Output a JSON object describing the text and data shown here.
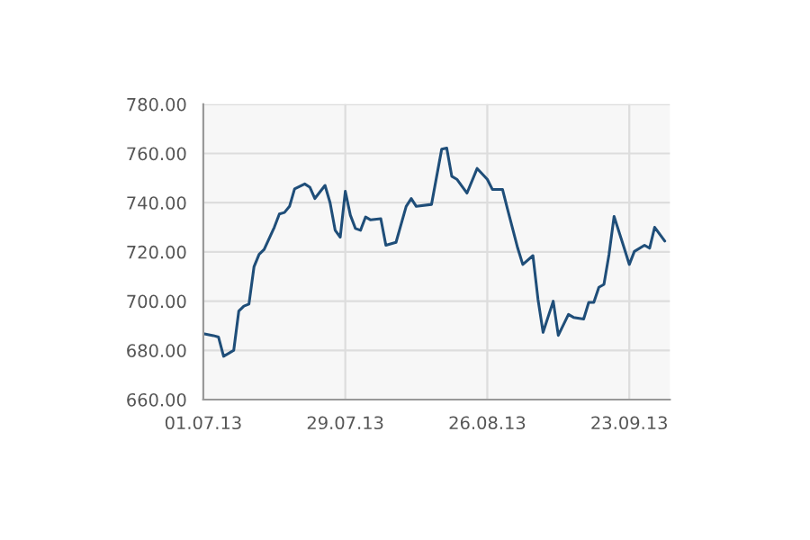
{
  "chart_data": {
    "type": "line",
    "x": [
      "2013-07-01",
      "2013-07-03",
      "2013-07-04",
      "2013-07-05",
      "2013-07-07",
      "2013-07-08",
      "2013-07-09",
      "2013-07-10",
      "2013-07-11",
      "2013-07-12",
      "2013-07-13",
      "2013-07-15",
      "2013-07-16",
      "2013-07-17",
      "2013-07-18",
      "2013-07-19",
      "2013-07-21",
      "2013-07-22",
      "2013-07-23",
      "2013-07-25",
      "2013-07-26",
      "2013-07-27",
      "2013-07-28",
      "2013-07-29",
      "2013-07-30",
      "2013-07-31",
      "2013-08-01",
      "2013-08-02",
      "2013-08-03",
      "2013-08-05",
      "2013-08-06",
      "2013-08-08",
      "2013-08-10",
      "2013-08-11",
      "2013-08-12",
      "2013-08-15",
      "2013-08-17",
      "2013-08-18",
      "2013-08-19",
      "2013-08-20",
      "2013-08-22",
      "2013-08-24",
      "2013-08-26",
      "2013-08-27",
      "2013-08-29",
      "2013-08-30",
      "2013-09-01",
      "2013-09-02",
      "2013-09-04",
      "2013-09-05",
      "2013-09-06",
      "2013-09-08",
      "2013-09-09",
      "2013-09-11",
      "2013-09-12",
      "2013-09-14",
      "2013-09-15",
      "2013-09-16",
      "2013-09-17",
      "2013-09-18",
      "2013-09-19",
      "2013-09-20",
      "2013-09-22",
      "2013-09-23",
      "2013-09-24",
      "2013-09-26",
      "2013-09-27",
      "2013-09-28",
      "2013-09-30"
    ],
    "series": [
      {
        "color": "#1f4e79",
        "values": [
          686.8,
          686,
          685.4,
          677.6,
          680,
          696,
          698,
          698.8,
          714,
          719,
          721,
          730,
          735.4,
          736,
          738.5,
          745.6,
          747.6,
          746.3,
          741.7,
          747,
          740,
          728.8,
          726,
          744.6,
          734.9,
          729.5,
          728.8,
          734.2,
          733,
          733.5,
          722.7,
          723.9,
          738.5,
          741.7,
          738.5,
          739.3,
          761.7,
          762.2,
          750.7,
          749.5,
          743.9,
          753.9,
          749.5,
          745.4,
          745.4,
          737.3,
          721.5,
          714.9,
          718.5,
          700.7,
          687.3,
          700,
          686.1,
          694.6,
          693.4,
          692.7,
          699.5,
          699.5,
          705.6,
          706.8,
          719,
          734.4,
          721.5,
          714.9,
          720.2,
          722.7,
          721.5,
          730,
          724.4
        ]
      }
    ],
    "xlim": [
      "2013-07-01",
      "2013-10-01"
    ],
    "xticks": [
      {
        "value": "2013-07-01",
        "label": "01.07.13"
      },
      {
        "value": "2013-07-29",
        "label": "29.07.13"
      },
      {
        "value": "2013-08-26",
        "label": "26.08.13"
      },
      {
        "value": "2013-09-23",
        "label": "23.09.13"
      }
    ],
    "ylim": [
      660,
      780
    ],
    "yticks": [
      {
        "value": 660,
        "label": "660.00"
      },
      {
        "value": 680,
        "label": "680.00"
      },
      {
        "value": 700,
        "label": "700.00"
      },
      {
        "value": 720,
        "label": "720.00"
      },
      {
        "value": 740,
        "label": "740.00"
      },
      {
        "value": 760,
        "label": "760.00"
      },
      {
        "value": 780,
        "label": "780.00"
      }
    ],
    "grid": true,
    "legend": false,
    "marker": "none",
    "line_style": "solid"
  }
}
